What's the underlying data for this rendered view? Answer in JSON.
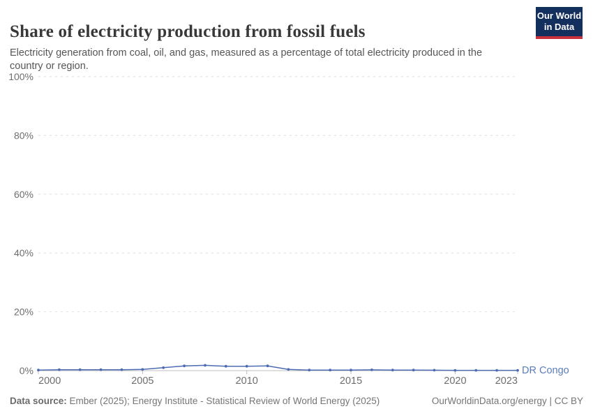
{
  "header": {
    "title": "Share of electricity production from fossil fuels",
    "subtitle": "Electricity generation from coal, oil, and gas, measured as a percentage of total electricity produced in the country or region.",
    "logo_line1": "Our World",
    "logo_line2": "in Data"
  },
  "footer": {
    "datasource_label": "Data source:",
    "datasource_text": " Ember (2025); Energy Institute - Statistical Review of World Energy (2025)",
    "link_text": "OurWorldinData.org/energy | CC BY"
  },
  "colors": {
    "line": "#4c6bb3",
    "series_label": "#5b7cbc",
    "gridline": "#dedede",
    "axis_line": "#bcbcbc",
    "tick_label": "#6e6e6e",
    "logo_bg": "#132f5e",
    "logo_red": "#c9313d"
  },
  "chart_data": {
    "type": "line",
    "title": "Share of electricity production from fossil fuels",
    "xlabel": "",
    "ylabel": "",
    "xlim": [
      2000,
      2023
    ],
    "ylim": [
      0,
      100
    ],
    "grid": "horizontal-dashed",
    "legend_position": "end-of-line-label",
    "x_ticks": [
      2000,
      2005,
      2010,
      2015,
      2020,
      2023
    ],
    "x_tick_labels": [
      "2000",
      "2005",
      "2010",
      "2015",
      "2020",
      "2023"
    ],
    "y_ticks": [
      0,
      20,
      40,
      60,
      80,
      100
    ],
    "y_tick_labels": [
      "0%",
      "20%",
      "40%",
      "60%",
      "80%",
      "100%"
    ],
    "series": [
      {
        "name": "DR Congo",
        "x": [
          2000,
          2001,
          2002,
          2003,
          2004,
          2005,
          2006,
          2007,
          2008,
          2009,
          2010,
          2011,
          2012,
          2013,
          2014,
          2015,
          2016,
          2017,
          2018,
          2019,
          2020,
          2021,
          2022,
          2023
        ],
        "values": [
          0.2,
          0.3,
          0.3,
          0.3,
          0.3,
          0.4,
          1.0,
          1.6,
          1.8,
          1.5,
          1.5,
          1.6,
          0.4,
          0.2,
          0.2,
          0.2,
          0.25,
          0.2,
          0.2,
          0.15,
          0.1,
          0.1,
          0.1,
          0.1
        ]
      }
    ]
  }
}
